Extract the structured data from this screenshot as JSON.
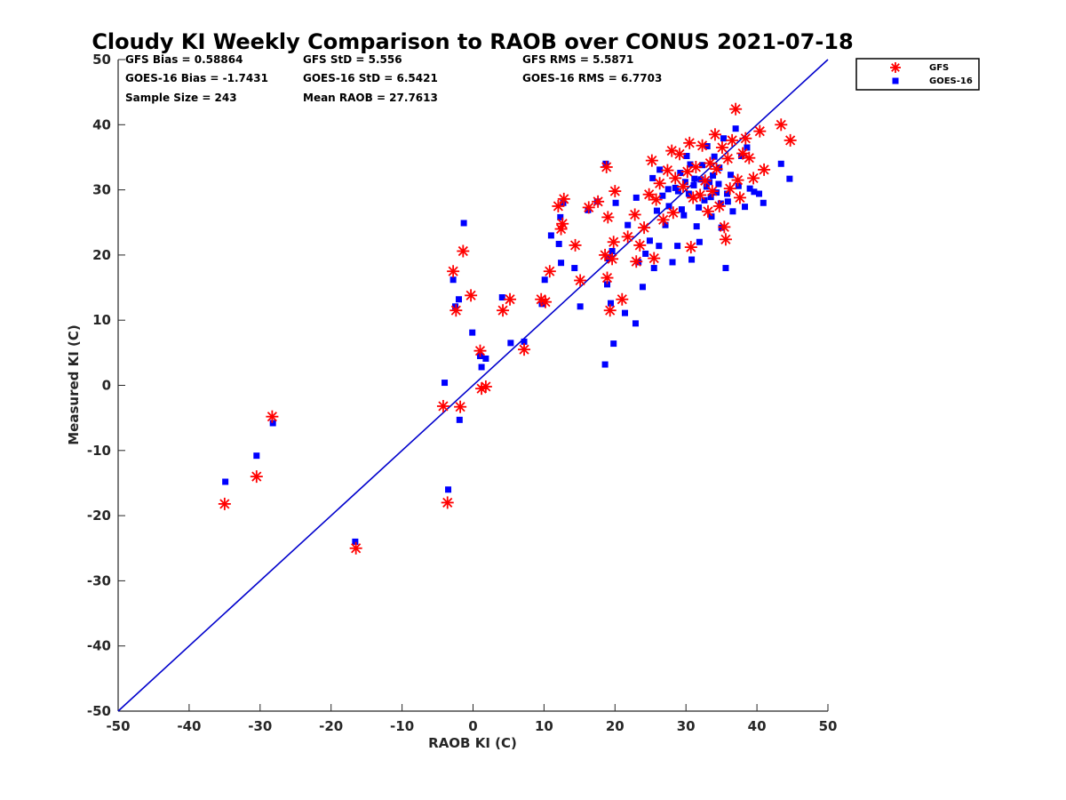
{
  "chart_data": {
    "type": "scatter",
    "title": "Cloudy KI Weekly Comparison to RAOB over CONUS 2021-07-18",
    "xlabel": "RAOB KI (C)",
    "ylabel": "Measured KI (C)",
    "xlim": [
      -50,
      50
    ],
    "ylim": [
      -50,
      50
    ],
    "xticks": [
      -50,
      -40,
      -30,
      -20,
      -10,
      0,
      10,
      20,
      30,
      40,
      50
    ],
    "yticks": [
      -50,
      -40,
      -30,
      -20,
      -10,
      0,
      10,
      20,
      30,
      40,
      50
    ],
    "grid": false,
    "legend_position": "outside-top-right",
    "stats": [
      [
        "GFS Bias = 0.58864",
        "GFS StD = 5.556",
        "GFS RMS = 5.5871"
      ],
      [
        "GOES-16 Bias = -1.7431",
        "GOES-16 StD = 6.5421",
        "GOES-16 RMS = 6.7703"
      ],
      [
        "Sample Size = 243",
        "Mean RAOB = 27.7613",
        ""
      ]
    ],
    "reference_line": {
      "x": [
        -50,
        50
      ],
      "y": [
        -50,
        50
      ],
      "color": "#0000cc"
    },
    "series": [
      {
        "name": "GFS",
        "marker": "asterisk",
        "color": "#ff0000",
        "points": [
          [
            -35,
            -18.2
          ],
          [
            -30.5,
            -14
          ],
          [
            -28.3,
            -4.8
          ],
          [
            -16.5,
            -25
          ],
          [
            -4.2,
            -3.2
          ],
          [
            -3.6,
            -18
          ],
          [
            -1.8,
            -3.3
          ],
          [
            -2.8,
            17.5
          ],
          [
            -2.4,
            11.5
          ],
          [
            -1.4,
            20.6
          ],
          [
            -0.3,
            13.8
          ],
          [
            1,
            5.3
          ],
          [
            1.2,
            -0.5
          ],
          [
            1.8,
            -0.2
          ],
          [
            4.2,
            11.5
          ],
          [
            5.2,
            13.2
          ],
          [
            7.2,
            5.5
          ],
          [
            9.6,
            13.2
          ],
          [
            10.2,
            12.8
          ],
          [
            10.8,
            17.5
          ],
          [
            12,
            27.5
          ],
          [
            12.4,
            24
          ],
          [
            12.6,
            24.8
          ],
          [
            12.8,
            28.6
          ],
          [
            14.4,
            21.5
          ],
          [
            15.1,
            16.1
          ],
          [
            16.3,
            27.3
          ],
          [
            17.6,
            28.2
          ],
          [
            18.6,
            20
          ],
          [
            18.8,
            33.5
          ],
          [
            19,
            25.8
          ],
          [
            18.9,
            16.5
          ],
          [
            19.3,
            11.5
          ],
          [
            19.8,
            22
          ],
          [
            19.6,
            19.4
          ],
          [
            20,
            29.8
          ],
          [
            21,
            13.2
          ],
          [
            21.8,
            22.8
          ],
          [
            22.8,
            26.2
          ],
          [
            23,
            19
          ],
          [
            23.5,
            21.5
          ],
          [
            24.1,
            24.2
          ],
          [
            24.8,
            29.3
          ],
          [
            25.2,
            34.5
          ],
          [
            25.5,
            19.5
          ],
          [
            25.8,
            28.5
          ],
          [
            26.3,
            31
          ],
          [
            26.8,
            25.4
          ],
          [
            27.4,
            33
          ],
          [
            28,
            36
          ],
          [
            28.2,
            26.5
          ],
          [
            28.5,
            31.8
          ],
          [
            29.1,
            35.5
          ],
          [
            29.6,
            30.5
          ],
          [
            30.2,
            32.8
          ],
          [
            30.5,
            37.2
          ],
          [
            30.7,
            21.2
          ],
          [
            31,
            28.8
          ],
          [
            31.4,
            33.5
          ],
          [
            32,
            29.2
          ],
          [
            32.3,
            36.8
          ],
          [
            32.7,
            31.4
          ],
          [
            33.1,
            26.7
          ],
          [
            33.4,
            34.1
          ],
          [
            33.7,
            29.8
          ],
          [
            34.1,
            38.5
          ],
          [
            34.3,
            33.2
          ],
          [
            34.7,
            27.5
          ],
          [
            35.1,
            36.5
          ],
          [
            35.4,
            24.3
          ],
          [
            35.6,
            22.4
          ],
          [
            35.9,
            34.8
          ],
          [
            36.2,
            30.2
          ],
          [
            36.5,
            37.6
          ],
          [
            37,
            42.4
          ],
          [
            37.3,
            31.5
          ],
          [
            37.6,
            28.8
          ],
          [
            38,
            35.6
          ],
          [
            38.4,
            37.9
          ],
          [
            38.9,
            34.9
          ],
          [
            39.5,
            31.8
          ],
          [
            40.4,
            39
          ],
          [
            41,
            33.1
          ],
          [
            43.4,
            40
          ],
          [
            44.7,
            37.6
          ]
        ]
      },
      {
        "name": "GOES-16",
        "marker": "square",
        "color": "#0000ff",
        "points": [
          [
            -34.9,
            -14.8
          ],
          [
            -30.5,
            -10.8
          ],
          [
            -28.2,
            -5.8
          ],
          [
            -16.6,
            -24
          ],
          [
            -4,
            0.4
          ],
          [
            -3.5,
            -16
          ],
          [
            -2.8,
            16.2
          ],
          [
            -2.5,
            12.1
          ],
          [
            -2,
            13.2
          ],
          [
            -1.9,
            -5.3
          ],
          [
            -1.3,
            24.9
          ],
          [
            -0.1,
            8.1
          ],
          [
            1,
            4.5
          ],
          [
            1.2,
            2.8
          ],
          [
            1.8,
            4.1
          ],
          [
            4.1,
            13.5
          ],
          [
            5.3,
            6.5
          ],
          [
            7.2,
            6.7
          ],
          [
            9.7,
            12.5
          ],
          [
            10.1,
            16.2
          ],
          [
            11,
            23
          ],
          [
            12.1,
            21.7
          ],
          [
            12.4,
            18.8
          ],
          [
            12.3,
            25.8
          ],
          [
            12.7,
            28
          ],
          [
            14.3,
            18
          ],
          [
            15.1,
            12.1
          ],
          [
            16.2,
            26.9
          ],
          [
            17.5,
            28.2
          ],
          [
            18.6,
            3.2
          ],
          [
            18.7,
            34
          ],
          [
            18.9,
            15.5
          ],
          [
            19.1,
            19.5
          ],
          [
            19.4,
            12.6
          ],
          [
            19.6,
            20.6
          ],
          [
            19.8,
            6.4
          ],
          [
            20.1,
            28
          ],
          [
            21.4,
            11.1
          ],
          [
            21.8,
            24.6
          ],
          [
            22.9,
            9.5
          ],
          [
            23,
            28.8
          ],
          [
            23.3,
            18.9
          ],
          [
            23.9,
            15.1
          ],
          [
            24.3,
            20.2
          ],
          [
            24.9,
            22.2
          ],
          [
            25.3,
            31.8
          ],
          [
            25.5,
            18
          ],
          [
            25.9,
            26.8
          ],
          [
            26.3,
            33.1
          ],
          [
            26.7,
            29.1
          ],
          [
            27.1,
            24.6
          ],
          [
            27.6,
            27.5
          ],
          [
            28.1,
            18.9
          ],
          [
            28.5,
            30.3
          ],
          [
            28.8,
            21.4
          ],
          [
            29.2,
            32.6
          ],
          [
            29.7,
            26.1
          ],
          [
            30.1,
            35.2
          ],
          [
            30.4,
            29.4
          ],
          [
            30.8,
            19.3
          ],
          [
            31.2,
            31.7
          ],
          [
            31.5,
            24.4
          ],
          [
            31.9,
            22
          ],
          [
            32.3,
            33.8
          ],
          [
            32.6,
            28.4
          ],
          [
            33,
            36.7
          ],
          [
            33.3,
            31.2
          ],
          [
            33.6,
            25.9
          ],
          [
            34,
            35.1
          ],
          [
            34.3,
            29.6
          ],
          [
            34.7,
            33.4
          ],
          [
            35,
            24.2
          ],
          [
            35.3,
            37.9
          ],
          [
            35.6,
            18
          ],
          [
            35.9,
            28.2
          ],
          [
            36.3,
            32.3
          ],
          [
            36.6,
            26.7
          ],
          [
            37,
            39.4
          ],
          [
            37.4,
            30.6
          ],
          [
            37.8,
            35.2
          ],
          [
            38.3,
            27.4
          ],
          [
            38.6,
            36.5
          ],
          [
            39,
            30.2
          ],
          [
            39.6,
            29.7
          ],
          [
            40.3,
            29.4
          ],
          [
            40.9,
            28
          ],
          [
            43.4,
            34
          ],
          [
            44.6,
            31.7
          ],
          [
            26.2,
            21.4
          ],
          [
            27.5,
            30.1
          ],
          [
            29.4,
            27
          ],
          [
            30.6,
            33.9
          ],
          [
            31.8,
            27.3
          ],
          [
            32.9,
            30.5
          ],
          [
            33.8,
            32.2
          ],
          [
            34.6,
            30.9
          ],
          [
            35.8,
            29.4
          ],
          [
            28.9,
            29.8
          ],
          [
            31.1,
            30.7
          ],
          [
            32.1,
            31.6
          ],
          [
            33.5,
            28.9
          ],
          [
            29.9,
            31.2
          ],
          [
            34.9,
            27.9
          ]
        ]
      }
    ]
  },
  "legend": {
    "items": [
      {
        "label": "GFS",
        "marker": "asterisk",
        "color": "#ff0000"
      },
      {
        "label": "GOES-16",
        "marker": "square",
        "color": "#0000ff"
      }
    ]
  }
}
